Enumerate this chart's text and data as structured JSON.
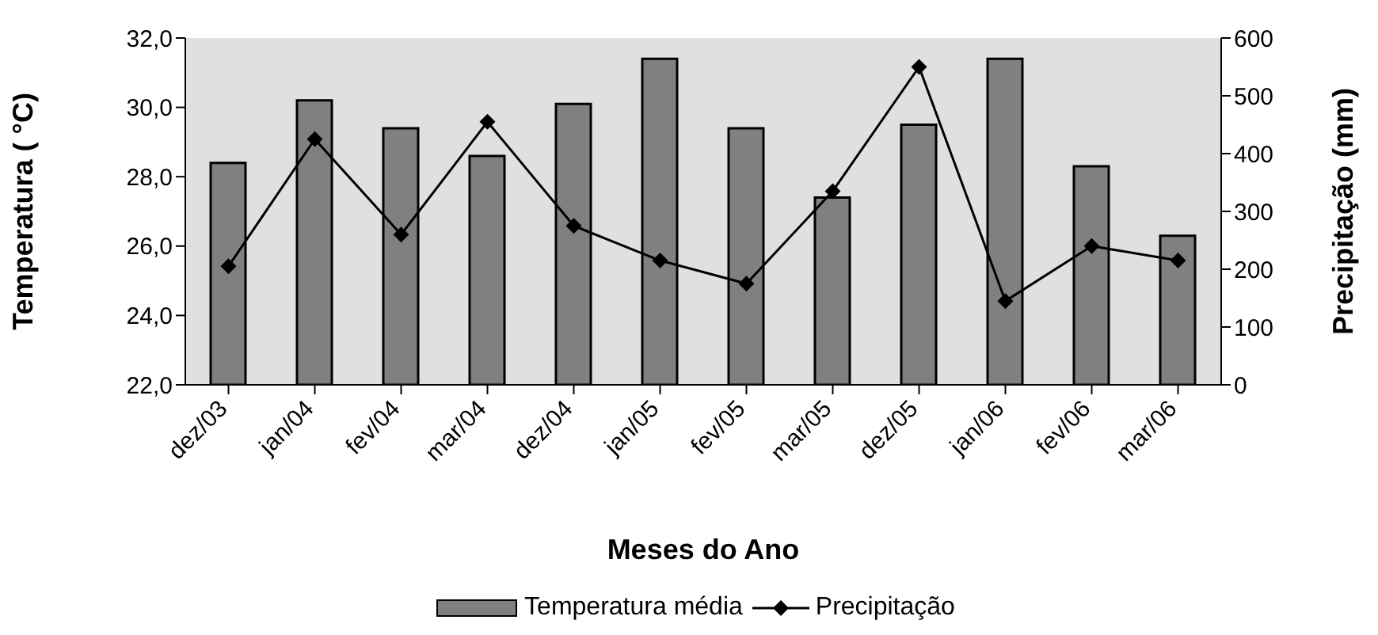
{
  "chart_data": {
    "type": "bar",
    "xlabel": "Meses do Ano",
    "ylabel": "Temperatura ( °C)",
    "y2label": "Precipitação (mm)",
    "categories": [
      "dez/03",
      "jan/04",
      "fev/04",
      "mar/04",
      "dez/04",
      "jan/05",
      "fev/05",
      "mar/05",
      "dez/05",
      "jan/06",
      "fev/06",
      "mar/06"
    ],
    "series": [
      {
        "name": "Temperatura  média",
        "color": "#808080",
        "values": [
          28.4,
          30.2,
          29.4,
          28.6,
          30.1,
          31.4,
          29.4,
          27.4,
          29.5,
          31.4,
          28.3,
          26.3
        ]
      },
      {
        "name": "Precipitação",
        "type": "line",
        "axis": "y2",
        "color": "#000000",
        "marker": "diamond",
        "line_style": "solid",
        "values": [
          205,
          425,
          260,
          455,
          275,
          215,
          175,
          335,
          550,
          145,
          240,
          215
        ]
      }
    ],
    "ylim": [
      22,
      32
    ],
    "yticks": [
      {
        "value": 22,
        "label": "22,0"
      },
      {
        "value": 24,
        "label": "24,0"
      },
      {
        "value": 26,
        "label": "26,0"
      },
      {
        "value": 28,
        "label": "28,0"
      },
      {
        "value": 30,
        "label": "30,0"
      },
      {
        "value": 32,
        "label": "32,0"
      }
    ],
    "y2lim": [
      0,
      600
    ],
    "y2ticks": [
      0,
      100,
      200,
      300,
      400,
      500,
      600
    ],
    "legend": "bottom"
  }
}
